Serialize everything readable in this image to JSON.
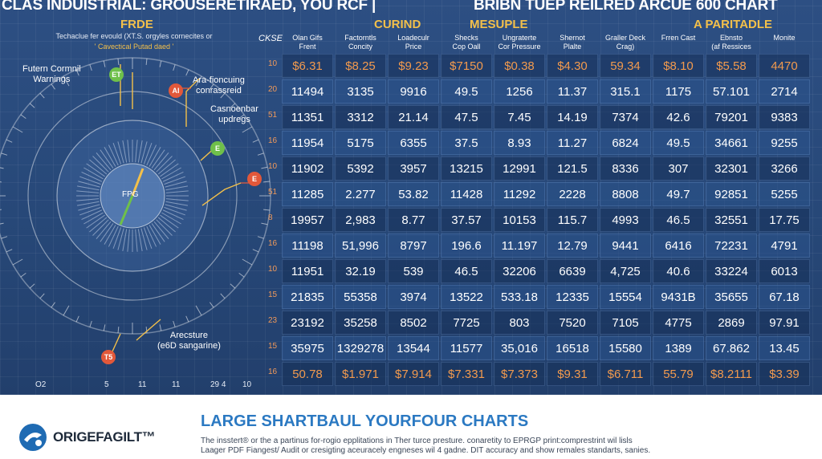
{
  "header": {
    "title_left": "CLAS INDUISTRIAL: GROUSERETIRAED, YOU RCF |",
    "title_right": "BRIBN TUEP REILRED ARCUE 600 CHART"
  },
  "groups": [
    "FRDE",
    "CURIND",
    "MESUPLE",
    "A PARITADLE"
  ],
  "left_panel": {
    "sub_line1": "Techaclue fer evould (XT.S. orgyles cornecites or",
    "sub_line2": "' Cavectical Putad daed '",
    "gauge_center": "FPG",
    "labels": {
      "top_left": "Futern Cormnil\nWarnings",
      "top_right": "Ara-fioncuing\nconrassreid",
      "mid_right": "Casnoenbar\nupdregs",
      "bottom": "Arecsture\n(e6D sangarine)"
    },
    "markers": [
      "ET",
      "AI",
      "E",
      "T5"
    ],
    "bottom_ticks": [
      "O2",
      "5",
      "11",
      "11",
      "29 4",
      "10"
    ]
  },
  "table": {
    "corner": "CKSE",
    "headers": [
      "Olan Gifs\nFrent",
      "Factorntls\nConcity",
      "Loadeculr\nPrice",
      "Shecks\nCop Oall",
      "Ungraterte\nCor Pressure",
      "Shernot\nPlalte",
      "Graller Deck\nCrag)",
      "Frren Cast",
      "Ebnsto\n(af Ressices",
      "Monite"
    ],
    "row_index": [
      "10",
      "20",
      "51",
      "16",
      "10",
      "51",
      "8",
      "16",
      "10",
      "15",
      "23",
      "15",
      "16"
    ],
    "rows": [
      [
        "$6.31",
        "$8.25",
        "$9.23",
        "$7150",
        "$0.38",
        "$4.30",
        "59.34",
        "$8.10",
        "$5.58",
        "4470"
      ],
      [
        "11494",
        "3135",
        "9916",
        "49.5",
        "1256",
        "11.37",
        "315.1",
        "1175",
        "57.101",
        "2714"
      ],
      [
        "11351",
        "3312",
        "21.14",
        "47.5",
        "7.45",
        "14.19",
        "7374",
        "42.6",
        "79201",
        "9383"
      ],
      [
        "11954",
        "5175",
        "6355",
        "37.5",
        "8.93",
        "11.27",
        "6824",
        "49.5",
        "34661",
        "9255"
      ],
      [
        "11902",
        "5392",
        "3957",
        "13215",
        "12991",
        "121.5",
        "8336",
        "307",
        "32301",
        "3266"
      ],
      [
        "11285",
        "2.277",
        "53.82",
        "11428",
        "11292",
        "2228",
        "8808",
        "49.7",
        "92851",
        "5255"
      ],
      [
        "19957",
        "2,983",
        "8.77",
        "37.57",
        "10153",
        "115.7",
        "4993",
        "46.5",
        "32551",
        "17.75"
      ],
      [
        "11198",
        "51,996",
        "8797",
        "196.6",
        "11.197",
        "12.79",
        "9441",
        "6416",
        "72231",
        "4791"
      ],
      [
        "11951",
        "32.19",
        "539",
        "46.5",
        "32206",
        "6639",
        "4,725",
        "40.6",
        "33224",
        "6013"
      ],
      [
        "21835",
        "55358",
        "3974",
        "13522",
        "533.18",
        "12335",
        "15554",
        "9431B",
        "35655",
        "67.18"
      ],
      [
        "23192",
        "35258",
        "8502",
        "7725",
        "803",
        "7520",
        "7105",
        "4775",
        "2869",
        "97.91"
      ],
      [
        "35975",
        "1329278",
        "13544",
        "11577",
        "35,016",
        "16518",
        "15580",
        "1389",
        "67.862",
        "13.45"
      ],
      [
        "50.78",
        "$1.971",
        "$7.914",
        "$7.331",
        "$7.373",
        "$9.31",
        "$6.711",
        "55.79",
        "$8.2111",
        "$3.39"
      ]
    ]
  },
  "footer": {
    "brand": "ORIGEFAGILT™",
    "title": "LARGE SHARTBAUL YOURFOUR CHARTS",
    "line1": "The insstert® or the a partinus for-rogio epplitations in Ther turce presture. conaretity to EPRGP print:comprestrint wil lisls",
    "line2": "Laager PDF Fiangest/ Audit or cresigting aceuracely engneses wil 4 gadne. DIT accuracy and show remales standarts, sanies."
  },
  "colors": {
    "background": "#274878",
    "accent_gold": "#f3c04a",
    "accent_orange": "#f29a4e",
    "footer_blue": "#2b79c2",
    "marker_green": "#6fc04a",
    "marker_red": "#e2583a"
  }
}
